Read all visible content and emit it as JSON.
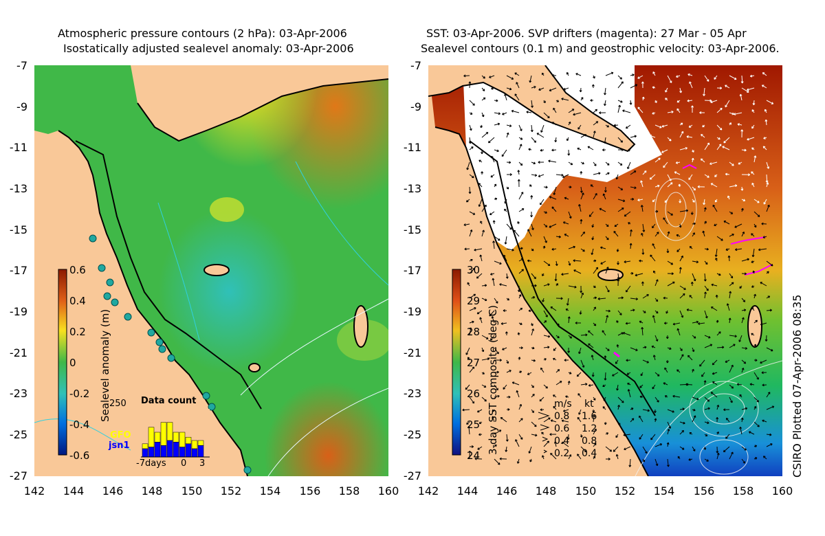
{
  "left_title": {
    "line1": "Atmospheric pressure contours (2 hPa): 03-Apr-2006",
    "line2": "Isostatically adjusted sealevel anomaly: 03-Apr-2006"
  },
  "right_title": {
    "line1": "SST: 03-Apr-2006. SVP drifters (magenta): 27 Mar - 05 Apr",
    "line2": "Sealevel contours (0.1 m) and geostrophic velocity: 03-Apr-2006."
  },
  "lat_ticks": [
    "-7",
    "-9",
    "-11",
    "-13",
    "-15",
    "-17",
    "-19",
    "-21",
    "-23",
    "-25",
    "-27"
  ],
  "lon_ticks": [
    "142",
    "144",
    "146",
    "148",
    "150",
    "152",
    "154",
    "156",
    "158",
    "160"
  ],
  "left_colorbar": {
    "label": "Sealevel anomaly (m)",
    "ticks": [
      "0.6",
      "0.4",
      "0.2",
      "0",
      "-0.2",
      "-0.4",
      "-0.6"
    ]
  },
  "right_colorbar": {
    "label": "3-day SST composite (deg C)",
    "ticks": [
      "30",
      "29",
      "28",
      "27",
      "26",
      "25",
      "24"
    ]
  },
  "data_count": {
    "title": "Data count",
    "max_label": "250",
    "series1": "GFO",
    "series2": "jsn1",
    "x_labels": [
      "-7days",
      "0",
      "3"
    ],
    "gfo_values": [
      30,
      120,
      60,
      140,
      110,
      60,
      90,
      40,
      50,
      30
    ],
    "jsn1_values": [
      50,
      60,
      90,
      70,
      100,
      90,
      60,
      80,
      50,
      70
    ]
  },
  "velocity_legend": {
    "header_ms": "m/s",
    "header_kt": "kt",
    "rows": [
      {
        "ms": "0.8",
        "kt": "1.6"
      },
      {
        "ms": "0.6",
        "kt": "1.2"
      },
      {
        "ms": "0.4",
        "kt": "0.8"
      },
      {
        "ms": "0.2",
        "kt": "0.4"
      }
    ]
  },
  "credit": "CSIRO Plotted 07-Apr-2006 08:35",
  "colors": {
    "land": "#f9c898",
    "coast": "#000000",
    "drifter": "#ff00ff",
    "gfo": "#ffff00",
    "jsn1": "#0000ff"
  }
}
